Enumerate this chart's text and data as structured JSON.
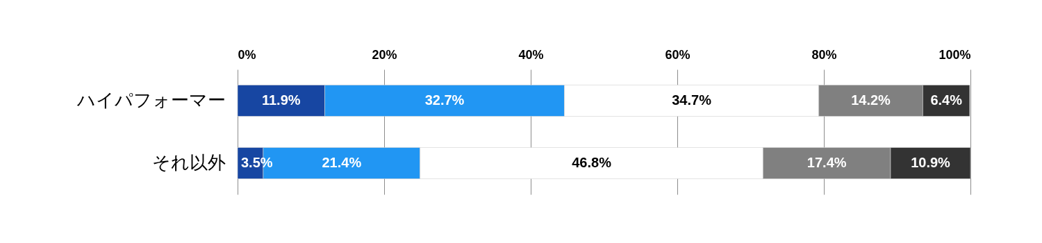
{
  "chart_data": {
    "type": "bar",
    "orientation": "horizontal",
    "stacked": true,
    "categories": [
      "ハイパフォーマー",
      "それ以外"
    ],
    "series": [
      {
        "color": "#1746a2",
        "values": [
          11.9,
          3.5
        ],
        "value_labels": [
          "11.9%",
          "3.5%"
        ]
      },
      {
        "color": "#2196f3",
        "values": [
          32.7,
          21.4
        ],
        "value_labels": [
          "32.7%",
          "21.4%"
        ]
      },
      {
        "color": "#ffffff",
        "values": [
          34.7,
          46.8
        ],
        "value_labels": [
          "34.7%",
          "46.8%"
        ]
      },
      {
        "color": "#808080",
        "values": [
          14.2,
          17.4
        ],
        "value_labels": [
          "14.2%",
          "17.4%"
        ]
      },
      {
        "color": "#333333",
        "values": [
          6.4,
          10.9
        ],
        "value_labels": [
          "6.4%",
          "10.9%"
        ]
      }
    ],
    "xlim": [
      0,
      100
    ],
    "xticks": [
      {
        "value": 0,
        "label": "0%"
      },
      {
        "value": 20,
        "label": "20%"
      },
      {
        "value": 40,
        "label": "40%"
      },
      {
        "value": 60,
        "label": "60%"
      },
      {
        "value": 80,
        "label": "80%"
      },
      {
        "value": 100,
        "label": "100%"
      }
    ],
    "grid": "x",
    "legend": false
  }
}
